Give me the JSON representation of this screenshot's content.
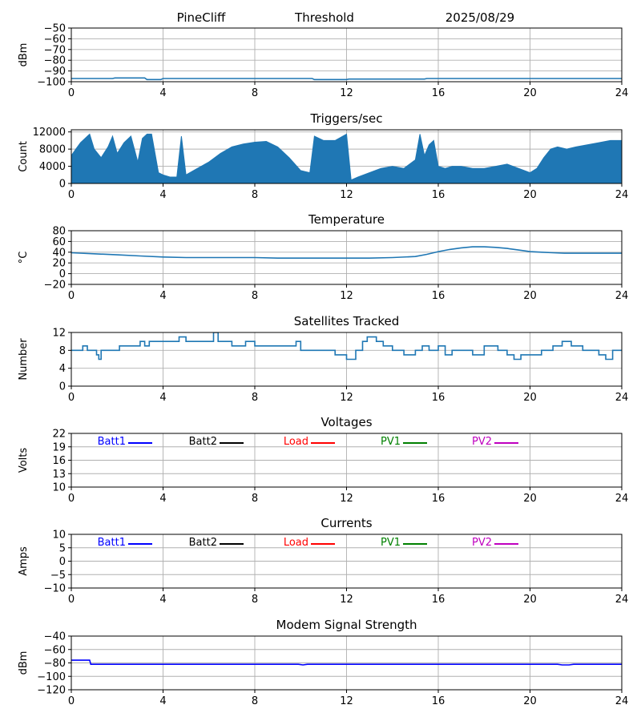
{
  "header": {
    "station": "PineCliff",
    "mode": "Threshold",
    "date": "2025/08/29"
  },
  "colors": {
    "series_default": "#1f77b4",
    "modem": "#0000ff",
    "grid": "#b0b0b0",
    "Batt1": "#0000ff",
    "Batt2": "#000000",
    "Load": "#ff0000",
    "PV1": "#008000",
    "PV2": "#bf00bf"
  },
  "chart_data": [
    {
      "id": "noise",
      "type": "line",
      "title": "",
      "ylabel": "dBm",
      "xlim": [
        0,
        24
      ],
      "ylim": [
        -100,
        -50
      ],
      "yticks": [
        -50,
        -60,
        -70,
        -80,
        -90,
        -100
      ],
      "xticks": [
        0,
        4,
        8,
        12,
        16,
        20,
        24
      ],
      "grid": true,
      "series": [
        {
          "color_key": "series_default",
          "x": [
            0,
            1.8,
            1.9,
            3.2,
            3.3,
            3.9,
            4.0,
            10.5,
            10.6,
            12.0,
            12.1,
            15.4,
            15.5,
            24
          ],
          "y": [
            -97,
            -97,
            -96.5,
            -96.5,
            -98,
            -98,
            -97,
            -97,
            -98,
            -98,
            -97.5,
            -97.5,
            -97,
            -97
          ]
        }
      ]
    },
    {
      "id": "triggers",
      "type": "area",
      "title": "Triggers/sec",
      "ylabel": "Count",
      "xlim": [
        0,
        24
      ],
      "ylim": [
        0,
        12500
      ],
      "yticks": [
        0,
        4000,
        8000,
        12000
      ],
      "xticks": [
        0,
        4,
        8,
        12,
        16,
        20,
        24
      ],
      "grid": true,
      "series": [
        {
          "color_key": "series_default",
          "x": [
            0,
            0.2,
            0.4,
            0.6,
            0.8,
            1.0,
            1.3,
            1.6,
            1.8,
            2.0,
            2.3,
            2.6,
            2.9,
            3.1,
            3.3,
            3.5,
            3.8,
            4.0,
            4.3,
            4.6,
            4.8,
            5.0,
            5.5,
            6.0,
            6.5,
            7.0,
            7.5,
            8.0,
            8.5,
            9.0,
            9.5,
            10.0,
            10.4,
            10.6,
            11.0,
            11.5,
            12.0,
            12.2,
            12.5,
            13.0,
            13.5,
            14.0,
            14.5,
            15.0,
            15.2,
            15.4,
            15.6,
            15.8,
            16.0,
            16.3,
            16.6,
            17.0,
            17.5,
            18.0,
            18.5,
            19.0,
            19.5,
            20.0,
            20.3,
            20.6,
            20.9,
            21.2,
            21.6,
            22.0,
            22.5,
            23.0,
            23.5,
            24
          ],
          "y": [
            6500,
            8000,
            9500,
            10500,
            11500,
            8000,
            6000,
            8500,
            11000,
            7000,
            9500,
            11000,
            5000,
            10500,
            11500,
            11500,
            2500,
            2000,
            1500,
            1500,
            11000,
            2000,
            3500,
            5000,
            7000,
            8500,
            9200,
            9600,
            9800,
            8500,
            6000,
            3000,
            2500,
            11000,
            10000,
            10000,
            11500,
            800,
            1500,
            2500,
            3500,
            4000,
            3500,
            5500,
            11500,
            6500,
            9000,
            10000,
            4000,
            3500,
            4000,
            4000,
            3500,
            3500,
            4000,
            4500,
            3500,
            2500,
            3500,
            6000,
            8000,
            8500,
            8000,
            8500,
            9000,
            9500,
            10000,
            10000
          ]
        }
      ]
    },
    {
      "id": "temperature",
      "type": "line",
      "title": "Temperature",
      "ylabel": "°C",
      "xlim": [
        0,
        24
      ],
      "ylim": [
        -20,
        80
      ],
      "yticks": [
        80,
        60,
        40,
        20,
        0,
        -20
      ],
      "xticks": [
        0,
        4,
        8,
        12,
        16,
        20,
        24
      ],
      "grid": true,
      "series": [
        {
          "color_key": "series_default",
          "x": [
            0,
            1,
            2,
            3,
            4,
            5,
            6,
            7,
            8,
            9,
            10,
            11,
            12,
            13,
            14,
            15,
            15.5,
            16,
            16.5,
            17,
            17.5,
            18,
            18.5,
            19,
            19.5,
            20,
            20.5,
            21,
            21.5,
            22,
            23,
            24
          ],
          "y": [
            39,
            37,
            35,
            33,
            31,
            30,
            30,
            30,
            30,
            29,
            29,
            29,
            29,
            29,
            30,
            32,
            36,
            41,
            45,
            48,
            50,
            50,
            49,
            47,
            44,
            41,
            40,
            39,
            38,
            38,
            38,
            38
          ]
        }
      ]
    },
    {
      "id": "satellites",
      "type": "line",
      "title": "Satellites Tracked",
      "ylabel": "Number",
      "xlim": [
        0,
        24
      ],
      "ylim": [
        0,
        12
      ],
      "yticks": [
        12,
        8,
        4,
        0
      ],
      "xticks": [
        0,
        4,
        8,
        12,
        16,
        20,
        24
      ],
      "grid": true,
      "series": [
        {
          "color_key": "series_default",
          "step": true,
          "x": [
            0,
            0.3,
            0.5,
            0.7,
            1.1,
            1.2,
            1.3,
            1.9,
            2.1,
            2.4,
            2.6,
            3.0,
            3.2,
            3.4,
            3.6,
            4.0,
            4.7,
            5.0,
            6.0,
            6.2,
            6.4,
            7.0,
            7.6,
            8.0,
            9.0,
            9.8,
            10.0,
            10.4,
            11.0,
            11.5,
            12.0,
            12.4,
            12.7,
            12.9,
            13.3,
            13.6,
            14.0,
            14.5,
            15.0,
            15.3,
            15.6,
            16.0,
            16.3,
            16.6,
            17.0,
            17.5,
            18.0,
            18.3,
            18.6,
            19.0,
            19.3,
            19.6,
            20.0,
            20.5,
            21.0,
            21.4,
            21.8,
            22.3,
            23.0,
            23.3,
            23.6,
            24
          ],
          "y": [
            8,
            8,
            9,
            8,
            7,
            6,
            8,
            8,
            9,
            9,
            9,
            10,
            9,
            10,
            10,
            10,
            11,
            10,
            10,
            12,
            10,
            9,
            10,
            9,
            9,
            10,
            8,
            8,
            8,
            7,
            6,
            8,
            10,
            11,
            10,
            9,
            8,
            7,
            8,
            9,
            8,
            9,
            7,
            8,
            8,
            7,
            9,
            9,
            8,
            7,
            6,
            7,
            7,
            8,
            9,
            10,
            9,
            8,
            7,
            6,
            8,
            8
          ]
        }
      ]
    },
    {
      "id": "voltages",
      "type": "line",
      "title": "Voltages",
      "ylabel": "Volts",
      "xlim": [
        0,
        24
      ],
      "ylim": [
        10,
        22
      ],
      "yticks": [
        22,
        19,
        16,
        13,
        10
      ],
      "xticks": [
        0,
        4,
        8,
        12,
        16,
        20,
        24
      ],
      "grid": true,
      "legend": [
        "Batt1",
        "Batt2",
        "Load",
        "PV1",
        "PV2"
      ],
      "series": []
    },
    {
      "id": "currents",
      "type": "line",
      "title": "Currents",
      "ylabel": "Amps",
      "xlim": [
        0,
        24
      ],
      "ylim": [
        -10,
        10
      ],
      "yticks": [
        10,
        5,
        0,
        -5,
        -10
      ],
      "xticks": [
        0,
        4,
        8,
        12,
        16,
        20,
        24
      ],
      "grid": true,
      "legend": [
        "Batt1",
        "Batt2",
        "Load",
        "PV1",
        "PV2"
      ],
      "series": []
    },
    {
      "id": "modem",
      "type": "line",
      "title": "Modem Signal Strength",
      "ylabel": "dBm",
      "xlim": [
        0,
        24
      ],
      "ylim": [
        -120,
        -40
      ],
      "yticks": [
        -40,
        -60,
        -80,
        -100,
        -120
      ],
      "xticks": [
        0,
        4,
        8,
        12,
        16,
        20,
        24
      ],
      "grid": true,
      "series": [
        {
          "color_key": "modem",
          "x": [
            0,
            0.8,
            0.85,
            9.9,
            10.1,
            10.3,
            21.2,
            21.4,
            21.7,
            21.9,
            24
          ],
          "y": [
            -76,
            -76,
            -82,
            -82,
            -83,
            -82,
            -82,
            -83,
            -83,
            -82,
            -82
          ]
        }
      ]
    }
  ]
}
